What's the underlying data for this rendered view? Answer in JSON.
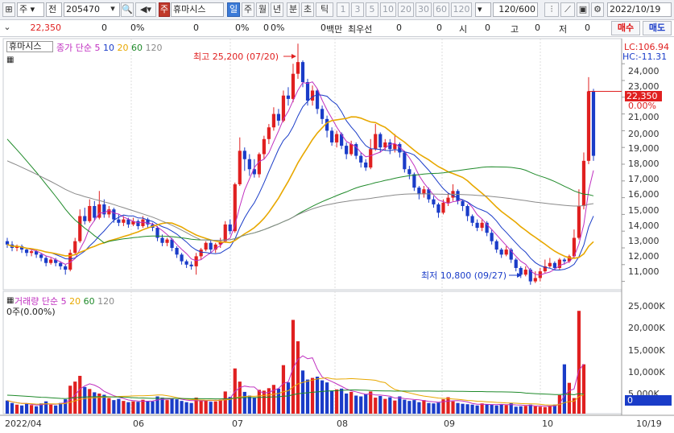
{
  "toolbar": {
    "market": "주",
    "prefix": "전",
    "code": "205470",
    "stock_type_badge": "주",
    "stock_name": "휴마시스",
    "periods": [
      "일",
      "주",
      "월",
      "년",
      "분",
      "초",
      "틱"
    ],
    "active_period": "일",
    "minutes": [
      "1",
      "3",
      "5",
      "10",
      "20",
      "30",
      "60",
      "120"
    ],
    "count": "120",
    "count_total": "/600",
    "date": "2022/10/19"
  },
  "infobar": {
    "price": "22,350",
    "v1": "0",
    "v1_unit": "0%",
    "v2": "0",
    "v2_unit": "0%",
    "v3": "0",
    "v3_unit": "0%",
    "v4": "0",
    "v4_unit": "백만",
    "label_best": "최우선",
    "best_val": "0",
    "label_open": "시",
    "open": "0",
    "label_high": "고",
    "high": "0",
    "label_low": "저",
    "low": "0",
    "buy": "매수",
    "sell": "매도"
  },
  "price_panel": {
    "name_tag": "휴마시스",
    "legend_label": "종가 단순",
    "ma_periods": [
      "5",
      "10",
      "20",
      "60",
      "120"
    ],
    "lc": "LC:106.94",
    "hc": "HC:-11.31",
    "high_note": "최고 25,200 (07/20)",
    "low_note": "최저 10,800 (09/27)",
    "current_price": "22,350",
    "current_pct": "0.00%",
    "y_ticks": [
      "24,000",
      "23,000",
      "22,000",
      "21,000",
      "20,000",
      "19,000",
      "18,000",
      "17,000",
      "16,000",
      "15,000",
      "14,000",
      "13,000",
      "12,000",
      "11,000"
    ]
  },
  "volume_panel": {
    "legend_label": "거래량",
    "legend_type": "단순",
    "ma_periods": [
      "5",
      "20",
      "60",
      "120"
    ],
    "sub": "0주(0.00%)",
    "current": "0",
    "y_ticks": [
      "25,000K",
      "20,000K",
      "15,000K",
      "10,000K",
      "5,000K"
    ]
  },
  "x_axis": [
    "2022/04",
    "06",
    "07",
    "08",
    "09",
    "10",
    "10/19"
  ],
  "colors": {
    "up": "#e02020",
    "down": "#1a3cc8",
    "ma5": "#c030c0",
    "ma10": "#1a3cc8",
    "ma20": "#e8a800",
    "ma60": "#1f8a2a",
    "ma120": "#8a8a8a"
  },
  "chart_data": {
    "type": "candlestick",
    "title": "휴마시스",
    "ylim": [
      10500,
      25500
    ],
    "candles": [
      {
        "o": 13400,
        "c": 13200,
        "h": 13600,
        "l": 13000
      },
      {
        "o": 13200,
        "c": 13000,
        "h": 13400,
        "l": 12800
      },
      {
        "o": 13000,
        "c": 13100,
        "h": 13200,
        "l": 12800
      },
      {
        "o": 13100,
        "c": 12900,
        "h": 13200,
        "l": 12700
      },
      {
        "o": 12900,
        "c": 12700,
        "h": 13000,
        "l": 12500
      },
      {
        "o": 12700,
        "c": 12800,
        "h": 12900,
        "l": 12500
      },
      {
        "o": 12800,
        "c": 12600,
        "h": 12900,
        "l": 12400
      },
      {
        "o": 12600,
        "c": 12400,
        "h": 12700,
        "l": 12200
      },
      {
        "o": 12400,
        "c": 12100,
        "h": 12500,
        "l": 11900
      },
      {
        "o": 12100,
        "c": 12300,
        "h": 12400,
        "l": 12000
      },
      {
        "o": 12300,
        "c": 12100,
        "h": 12400,
        "l": 11900
      },
      {
        "o": 12100,
        "c": 11900,
        "h": 12200,
        "l": 11700
      },
      {
        "o": 11900,
        "c": 11700,
        "h": 12000,
        "l": 11400
      },
      {
        "o": 11700,
        "c": 12700,
        "h": 12900,
        "l": 11600
      },
      {
        "o": 12700,
        "c": 13400,
        "h": 13600,
        "l": 12600
      },
      {
        "o": 13400,
        "c": 14900,
        "h": 15300,
        "l": 13300
      },
      {
        "o": 14900,
        "c": 14600,
        "h": 15400,
        "l": 14400
      },
      {
        "o": 14600,
        "c": 15500,
        "h": 15900,
        "l": 14500
      },
      {
        "o": 15500,
        "c": 14800,
        "h": 15800,
        "l": 14600
      },
      {
        "o": 14800,
        "c": 15600,
        "h": 16400,
        "l": 14700
      },
      {
        "o": 15600,
        "c": 15000,
        "h": 15900,
        "l": 14800
      },
      {
        "o": 15000,
        "c": 15300,
        "h": 15500,
        "l": 14800
      },
      {
        "o": 15300,
        "c": 14700,
        "h": 15400,
        "l": 14500
      },
      {
        "o": 14700,
        "c": 14500,
        "h": 15000,
        "l": 14300
      },
      {
        "o": 14500,
        "c": 14700,
        "h": 14900,
        "l": 14300
      },
      {
        "o": 14700,
        "c": 14400,
        "h": 14800,
        "l": 14200
      },
      {
        "o": 14400,
        "c": 14600,
        "h": 14800,
        "l": 14300
      },
      {
        "o": 14600,
        "c": 14300,
        "h": 14700,
        "l": 14100
      },
      {
        "o": 14300,
        "c": 14700,
        "h": 14900,
        "l": 14200
      },
      {
        "o": 14700,
        "c": 14400,
        "h": 14800,
        "l": 14200
      },
      {
        "o": 14400,
        "c": 14200,
        "h": 14500,
        "l": 14000
      },
      {
        "o": 14200,
        "c": 13600,
        "h": 14300,
        "l": 13400
      },
      {
        "o": 13600,
        "c": 13300,
        "h": 13800,
        "l": 13100
      },
      {
        "o": 13300,
        "c": 13500,
        "h": 13600,
        "l": 13100
      },
      {
        "o": 13500,
        "c": 13000,
        "h": 13600,
        "l": 12800
      },
      {
        "o": 13000,
        "c": 12600,
        "h": 13100,
        "l": 12400
      },
      {
        "o": 12600,
        "c": 12200,
        "h": 12700,
        "l": 12000
      },
      {
        "o": 12200,
        "c": 12000,
        "h": 12300,
        "l": 11800
      },
      {
        "o": 12000,
        "c": 11900,
        "h": 12200,
        "l": 11700
      },
      {
        "o": 11900,
        "c": 12500,
        "h": 12700,
        "l": 11400
      },
      {
        "o": 12500,
        "c": 12900,
        "h": 13000,
        "l": 12300
      },
      {
        "o": 12900,
        "c": 13300,
        "h": 13400,
        "l": 12800
      },
      {
        "o": 13300,
        "c": 12900,
        "h": 13500,
        "l": 12700
      },
      {
        "o": 12900,
        "c": 13200,
        "h": 13300,
        "l": 12700
      },
      {
        "o": 13200,
        "c": 13400,
        "h": 13600,
        "l": 13000
      },
      {
        "o": 13400,
        "c": 14400,
        "h": 14600,
        "l": 13300
      },
      {
        "o": 14400,
        "c": 14000,
        "h": 14700,
        "l": 13800
      },
      {
        "o": 14000,
        "c": 16800,
        "h": 16900,
        "l": 13900
      },
      {
        "o": 16800,
        "c": 18800,
        "h": 19600,
        "l": 16700
      },
      {
        "o": 18800,
        "c": 18300,
        "h": 19000,
        "l": 17600
      },
      {
        "o": 18300,
        "c": 17700,
        "h": 18600,
        "l": 17300
      },
      {
        "o": 17700,
        "c": 17400,
        "h": 18300,
        "l": 17200
      },
      {
        "o": 17400,
        "c": 18600,
        "h": 18700,
        "l": 17200
      },
      {
        "o": 18600,
        "c": 19500,
        "h": 19700,
        "l": 18300
      },
      {
        "o": 19500,
        "c": 20200,
        "h": 20400,
        "l": 19200
      },
      {
        "o": 20200,
        "c": 21000,
        "h": 21400,
        "l": 20000
      },
      {
        "o": 21000,
        "c": 20600,
        "h": 21300,
        "l": 20300
      },
      {
        "o": 20600,
        "c": 22100,
        "h": 22400,
        "l": 20500
      },
      {
        "o": 22100,
        "c": 21900,
        "h": 22600,
        "l": 21500
      },
      {
        "o": 21900,
        "c": 23400,
        "h": 24000,
        "l": 21700
      },
      {
        "o": 23400,
        "c": 24100,
        "h": 25200,
        "l": 23100
      },
      {
        "o": 24100,
        "c": 22900,
        "h": 24200,
        "l": 22600
      },
      {
        "o": 22900,
        "c": 21800,
        "h": 23100,
        "l": 21500
      },
      {
        "o": 21800,
        "c": 22400,
        "h": 22700,
        "l": 21500
      },
      {
        "o": 22400,
        "c": 21300,
        "h": 22500,
        "l": 21000
      },
      {
        "o": 21300,
        "c": 20700,
        "h": 21500,
        "l": 20400
      },
      {
        "o": 20700,
        "c": 20000,
        "h": 20900,
        "l": 19600
      },
      {
        "o": 20000,
        "c": 19300,
        "h": 20200,
        "l": 19100
      },
      {
        "o": 19300,
        "c": 19800,
        "h": 20000,
        "l": 19000
      },
      {
        "o": 19800,
        "c": 19100,
        "h": 19900,
        "l": 18900
      },
      {
        "o": 19100,
        "c": 18600,
        "h": 19300,
        "l": 18300
      },
      {
        "o": 18600,
        "c": 19200,
        "h": 19400,
        "l": 18500
      },
      {
        "o": 19200,
        "c": 18500,
        "h": 19300,
        "l": 18300
      },
      {
        "o": 18500,
        "c": 18100,
        "h": 18700,
        "l": 17800
      },
      {
        "o": 18100,
        "c": 17800,
        "h": 18300,
        "l": 17600
      },
      {
        "o": 17800,
        "c": 18900,
        "h": 19500,
        "l": 17700
      },
      {
        "o": 18900,
        "c": 19800,
        "h": 20400,
        "l": 18800
      },
      {
        "o": 19800,
        "c": 19000,
        "h": 19900,
        "l": 18700
      },
      {
        "o": 19000,
        "c": 19300,
        "h": 19500,
        "l": 18800
      },
      {
        "o": 19300,
        "c": 18900,
        "h": 19500,
        "l": 18600
      },
      {
        "o": 18900,
        "c": 19200,
        "h": 19800,
        "l": 18700
      },
      {
        "o": 19200,
        "c": 18700,
        "h": 19300,
        "l": 18400
      },
      {
        "o": 18700,
        "c": 17700,
        "h": 18800,
        "l": 17500
      },
      {
        "o": 17700,
        "c": 17400,
        "h": 17900,
        "l": 17100
      },
      {
        "o": 17400,
        "c": 16600,
        "h": 17500,
        "l": 16400
      },
      {
        "o": 16600,
        "c": 16200,
        "h": 16700,
        "l": 15900
      },
      {
        "o": 16200,
        "c": 16500,
        "h": 16700,
        "l": 16000
      },
      {
        "o": 16500,
        "c": 15900,
        "h": 16600,
        "l": 15700
      },
      {
        "o": 15900,
        "c": 15600,
        "h": 16100,
        "l": 15400
      },
      {
        "o": 15600,
        "c": 15100,
        "h": 15700,
        "l": 14800
      },
      {
        "o": 15100,
        "c": 15700,
        "h": 15900,
        "l": 15000
      },
      {
        "o": 15700,
        "c": 16000,
        "h": 16300,
        "l": 15500
      },
      {
        "o": 16000,
        "c": 16400,
        "h": 16800,
        "l": 15800
      },
      {
        "o": 16400,
        "c": 15800,
        "h": 16500,
        "l": 15600
      },
      {
        "o": 15800,
        "c": 15500,
        "h": 15900,
        "l": 15200
      },
      {
        "o": 15500,
        "c": 14900,
        "h": 15600,
        "l": 14600
      },
      {
        "o": 14900,
        "c": 14500,
        "h": 15000,
        "l": 14300
      },
      {
        "o": 14500,
        "c": 14200,
        "h": 14700,
        "l": 14000
      },
      {
        "o": 14200,
        "c": 14500,
        "h": 14700,
        "l": 14000
      },
      {
        "o": 14500,
        "c": 13900,
        "h": 14600,
        "l": 13700
      },
      {
        "o": 13900,
        "c": 13400,
        "h": 14100,
        "l": 13200
      },
      {
        "o": 13400,
        "c": 12900,
        "h": 13500,
        "l": 12700
      },
      {
        "o": 12900,
        "c": 12600,
        "h": 13000,
        "l": 12400
      },
      {
        "o": 12600,
        "c": 12900,
        "h": 13100,
        "l": 12500
      },
      {
        "o": 12900,
        "c": 12300,
        "h": 13000,
        "l": 12100
      },
      {
        "o": 12300,
        "c": 11800,
        "h": 12400,
        "l": 11600
      },
      {
        "o": 11800,
        "c": 11400,
        "h": 11900,
        "l": 11200
      },
      {
        "o": 11400,
        "c": 11700,
        "h": 11900,
        "l": 11300
      },
      {
        "o": 11700,
        "c": 11000,
        "h": 11800,
        "l": 10800
      },
      {
        "o": 11000,
        "c": 11200,
        "h": 11600,
        "l": 10900
      },
      {
        "o": 11200,
        "c": 11600,
        "h": 11800,
        "l": 11000
      },
      {
        "o": 11600,
        "c": 11900,
        "h": 12300,
        "l": 11500
      },
      {
        "o": 11900,
        "c": 12100,
        "h": 12400,
        "l": 11800
      },
      {
        "o": 12100,
        "c": 11800,
        "h": 12200,
        "l": 11700
      },
      {
        "o": 11800,
        "c": 12300,
        "h": 12400,
        "l": 11700
      },
      {
        "o": 12300,
        "c": 12200,
        "h": 12400,
        "l": 12000
      },
      {
        "o": 12200,
        "c": 12500,
        "h": 12600,
        "l": 12100
      },
      {
        "o": 12500,
        "c": 13600,
        "h": 14100,
        "l": 12400
      },
      {
        "o": 13600,
        "c": 15500,
        "h": 16500,
        "l": 13500
      },
      {
        "o": 15500,
        "c": 18200,
        "h": 18700,
        "l": 15300
      },
      {
        "o": 18200,
        "c": 22350,
        "h": 23200,
        "l": 18000
      },
      {
        "o": 22350,
        "c": 18500,
        "h": 22500,
        "l": 18200
      }
    ],
    "volumes_k": [
      3200,
      2600,
      2200,
      2000,
      2400,
      2100,
      1800,
      2500,
      3000,
      2200,
      2000,
      2600,
      3500,
      6800,
      7800,
      9200,
      6500,
      6000,
      5200,
      4900,
      4600,
      3800,
      3300,
      3600,
      3100,
      2800,
      3000,
      2900,
      3400,
      3100,
      3000,
      4200,
      3900,
      3300,
      3800,
      3500,
      3100,
      2800,
      2600,
      3900,
      3300,
      3200,
      2900,
      3000,
      3400,
      5400,
      4100,
      11000,
      7800,
      5300,
      4400,
      3900,
      5800,
      5600,
      6200,
      7000,
      6100,
      11800,
      7600,
      22800,
      17600,
      10500,
      8300,
      8700,
      9000,
      8100,
      7600,
      5600,
      5900,
      6100,
      4900,
      5300,
      4400,
      4200,
      4800,
      5400,
      3900,
      4300,
      3600,
      4000,
      3200,
      4200,
      3400,
      3100,
      3300,
      2800,
      3300,
      2600,
      2500,
      2700,
      3500,
      4000,
      3000,
      2600,
      2400,
      2300,
      2200,
      2000,
      2500,
      2300,
      2200,
      2000,
      2300,
      2100,
      2600,
      1700,
      1800,
      1900,
      2200,
      1800,
      1700,
      1600,
      1900,
      2200,
      4500,
      12000,
      7500,
      3800,
      25000,
      12000
    ]
  }
}
